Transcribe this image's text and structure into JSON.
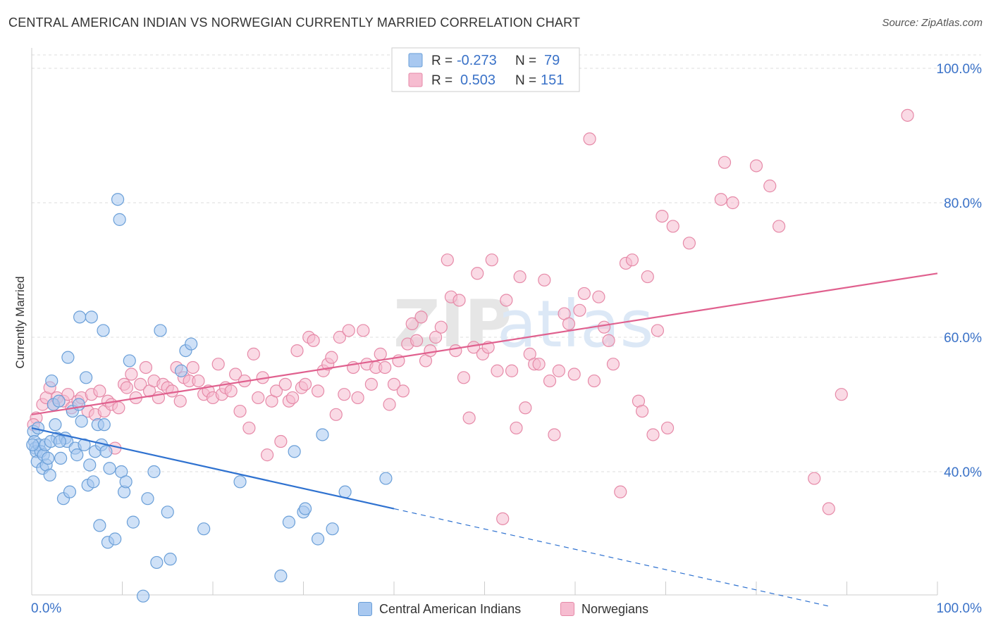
{
  "title": "CENTRAL AMERICAN INDIAN VS NORWEGIAN CURRENTLY MARRIED CORRELATION CHART",
  "source": "Source: ZipAtlas.com",
  "watermark": {
    "zip": "ZIP",
    "atlas": "atlas"
  },
  "legend_box": {
    "rows": [
      {
        "r_label": "R =",
        "r_value": "-0.273",
        "n_label": "N =",
        "n_value": "79"
      },
      {
        "r_label": "R =",
        "r_value": "0.503",
        "n_label": "N =",
        "n_value": "151"
      }
    ]
  },
  "colors": {
    "blue_fill": "#a8c8f0",
    "blue_stroke": "#6a9fd8",
    "blue_line": "#2f72d0",
    "pink_fill": "#f6bcd0",
    "pink_stroke": "#e68aa8",
    "pink_line": "#e0608e",
    "axis_label": "#3a72c8",
    "grid": "#dddddd"
  },
  "chart_data": {
    "type": "scatter",
    "title": "CENTRAL AMERICAN INDIAN VS NORWEGIAN CURRENTLY MARRIED CORRELATION CHART",
    "xlabel": "",
    "ylabel": "Currently Married",
    "xlim": [
      0,
      100
    ],
    "ylim": [
      20,
      102
    ],
    "x_tick_labels": [
      "0.0%",
      "100.0%"
    ],
    "y_ticks": [
      40,
      60,
      80,
      100
    ],
    "y_tick_labels": [
      "40.0%",
      "60.0%",
      "80.0%",
      "100.0%"
    ],
    "grid": true,
    "legend_position": "top-center",
    "series": [
      {
        "name": "Central American Indians",
        "color": "#a8c8f0",
        "r": -0.273,
        "n": 79,
        "trend": {
          "x0": 0,
          "y0": 46.5,
          "x1": 40,
          "y1": 34.5,
          "dashed_to_x": 88,
          "dashed_to_y": 20.0
        },
        "points": [
          [
            0.2,
            46.0
          ],
          [
            0.3,
            44.5
          ],
          [
            0.4,
            43.5
          ],
          [
            0.5,
            43.0
          ],
          [
            0.6,
            41.5
          ],
          [
            0.8,
            44.0
          ],
          [
            1.0,
            43.0
          ],
          [
            1.2,
            40.5
          ],
          [
            1.3,
            42.5
          ],
          [
            1.5,
            44.0
          ],
          [
            1.6,
            41.0
          ],
          [
            2.0,
            39.5
          ],
          [
            2.2,
            53.5
          ],
          [
            2.4,
            50.0
          ],
          [
            2.6,
            47.0
          ],
          [
            2.8,
            45.0
          ],
          [
            3.0,
            50.5
          ],
          [
            3.2,
            42.0
          ],
          [
            3.5,
            36.0
          ],
          [
            3.7,
            45.0
          ],
          [
            3.9,
            44.5
          ],
          [
            4.0,
            57.0
          ],
          [
            4.2,
            37.0
          ],
          [
            4.5,
            49.0
          ],
          [
            4.8,
            43.5
          ],
          [
            5.0,
            42.5
          ],
          [
            5.2,
            50.0
          ],
          [
            5.3,
            63.0
          ],
          [
            5.5,
            47.5
          ],
          [
            5.8,
            44.0
          ],
          [
            6.0,
            54.0
          ],
          [
            6.2,
            38.0
          ],
          [
            6.4,
            41.0
          ],
          [
            6.6,
            63.0
          ],
          [
            6.8,
            38.5
          ],
          [
            7.0,
            43.0
          ],
          [
            7.3,
            47.0
          ],
          [
            7.5,
            32.0
          ],
          [
            7.7,
            44.0
          ],
          [
            7.9,
            61.0
          ],
          [
            8.0,
            47.0
          ],
          [
            8.2,
            43.0
          ],
          [
            8.4,
            29.5
          ],
          [
            8.6,
            40.5
          ],
          [
            9.2,
            30.0
          ],
          [
            9.5,
            80.5
          ],
          [
            9.7,
            77.5
          ],
          [
            9.9,
            40.0
          ],
          [
            10.2,
            37.0
          ],
          [
            10.4,
            38.5
          ],
          [
            10.8,
            56.5
          ],
          [
            11.2,
            32.5
          ],
          [
            12.3,
            21.5
          ],
          [
            12.8,
            36.0
          ],
          [
            13.5,
            40.0
          ],
          [
            13.8,
            26.5
          ],
          [
            14.2,
            61.0
          ],
          [
            15.0,
            34.0
          ],
          [
            15.3,
            27.0
          ],
          [
            16.5,
            55.0
          ],
          [
            17.0,
            58.0
          ],
          [
            17.6,
            59.0
          ],
          [
            19.0,
            31.5
          ],
          [
            23.0,
            38.5
          ],
          [
            27.5,
            24.5
          ],
          [
            28.4,
            32.5
          ],
          [
            29.0,
            43.0
          ],
          [
            30.0,
            34.0
          ],
          [
            30.2,
            34.5
          ],
          [
            31.6,
            30.0
          ],
          [
            32.1,
            45.5
          ],
          [
            33.2,
            31.5
          ],
          [
            34.6,
            37.0
          ],
          [
            39.1,
            39.0
          ],
          [
            0.1,
            44.0
          ],
          [
            0.7,
            46.5
          ],
          [
            1.8,
            42.0
          ],
          [
            2.1,
            44.5
          ],
          [
            3.1,
            44.5
          ]
        ]
      },
      {
        "name": "Norwegians",
        "color": "#f6bcd0",
        "r": 0.503,
        "n": 151,
        "trend": {
          "x0": 0,
          "y0": 48.5,
          "x1": 100,
          "y1": 69.5
        },
        "points": [
          [
            0.5,
            48.0
          ],
          [
            1.2,
            50.0
          ],
          [
            1.6,
            51.0
          ],
          [
            2.0,
            52.5
          ],
          [
            2.4,
            50.0
          ],
          [
            2.8,
            51.0
          ],
          [
            3.5,
            50.5
          ],
          [
            4.0,
            51.5
          ],
          [
            4.4,
            49.5
          ],
          [
            5.1,
            50.5
          ],
          [
            5.5,
            51.0
          ],
          [
            6.2,
            49.0
          ],
          [
            6.6,
            51.5
          ],
          [
            7.0,
            48.5
          ],
          [
            7.5,
            52.0
          ],
          [
            8.0,
            49.0
          ],
          [
            8.4,
            50.5
          ],
          [
            8.8,
            50.0
          ],
          [
            9.2,
            43.5
          ],
          [
            9.6,
            49.5
          ],
          [
            10.2,
            53.0
          ],
          [
            10.5,
            52.5
          ],
          [
            11.0,
            54.5
          ],
          [
            11.5,
            51.0
          ],
          [
            12.0,
            53.0
          ],
          [
            12.6,
            55.5
          ],
          [
            13.0,
            52.0
          ],
          [
            13.5,
            53.5
          ],
          [
            14.0,
            51.0
          ],
          [
            14.5,
            53.0
          ],
          [
            15.0,
            52.5
          ],
          [
            15.5,
            52.0
          ],
          [
            16.0,
            55.5
          ],
          [
            16.4,
            50.5
          ],
          [
            16.8,
            54.0
          ],
          [
            17.4,
            53.5
          ],
          [
            17.8,
            55.5
          ],
          [
            18.4,
            53.5
          ],
          [
            19.0,
            51.5
          ],
          [
            19.5,
            52.0
          ],
          [
            20.0,
            51.0
          ],
          [
            20.6,
            56.0
          ],
          [
            21.0,
            51.5
          ],
          [
            21.4,
            52.5
          ],
          [
            22.0,
            52.0
          ],
          [
            22.5,
            54.5
          ],
          [
            23.0,
            49.0
          ],
          [
            23.5,
            53.5
          ],
          [
            24.0,
            46.5
          ],
          [
            24.5,
            57.5
          ],
          [
            25.0,
            51.0
          ],
          [
            25.5,
            54.0
          ],
          [
            26.0,
            42.5
          ],
          [
            26.5,
            50.5
          ],
          [
            27.0,
            52.0
          ],
          [
            27.5,
            44.5
          ],
          [
            28.0,
            53.0
          ],
          [
            28.4,
            50.5
          ],
          [
            28.8,
            51.0
          ],
          [
            29.3,
            58.0
          ],
          [
            29.8,
            52.5
          ],
          [
            30.2,
            53.0
          ],
          [
            30.6,
            60.0
          ],
          [
            31.1,
            59.5
          ],
          [
            31.6,
            52.0
          ],
          [
            32.2,
            55.0
          ],
          [
            32.7,
            56.0
          ],
          [
            33.1,
            57.0
          ],
          [
            33.6,
            48.5
          ],
          [
            34.0,
            60.0
          ],
          [
            34.5,
            51.5
          ],
          [
            35.0,
            61.0
          ],
          [
            35.5,
            55.5
          ],
          [
            36.0,
            51.0
          ],
          [
            36.6,
            61.0
          ],
          [
            37.0,
            56.0
          ],
          [
            37.5,
            53.0
          ],
          [
            38.0,
            55.5
          ],
          [
            38.5,
            57.5
          ],
          [
            39.0,
            55.5
          ],
          [
            39.5,
            50.0
          ],
          [
            40.0,
            53.0
          ],
          [
            40.5,
            56.5
          ],
          [
            41.0,
            52.0
          ],
          [
            41.5,
            59.0
          ],
          [
            42.0,
            62.0
          ],
          [
            42.5,
            59.5
          ],
          [
            43.0,
            63.0
          ],
          [
            43.5,
            56.5
          ],
          [
            44.0,
            58.0
          ],
          [
            44.6,
            60.0
          ],
          [
            45.2,
            61.5
          ],
          [
            45.9,
            71.5
          ],
          [
            46.3,
            66.0
          ],
          [
            46.8,
            58.0
          ],
          [
            47.2,
            65.5
          ],
          [
            47.7,
            54.0
          ],
          [
            48.3,
            48.0
          ],
          [
            48.8,
            58.5
          ],
          [
            49.2,
            69.5
          ],
          [
            49.8,
            57.5
          ],
          [
            50.4,
            58.5
          ],
          [
            50.8,
            71.5
          ],
          [
            51.4,
            55.0
          ],
          [
            52.0,
            33.0
          ],
          [
            52.4,
            65.5
          ],
          [
            53.0,
            55.0
          ],
          [
            53.5,
            46.5
          ],
          [
            53.9,
            69.0
          ],
          [
            54.5,
            49.5
          ],
          [
            55.0,
            57.5
          ],
          [
            55.5,
            56.0
          ],
          [
            56.0,
            56.0
          ],
          [
            56.6,
            68.5
          ],
          [
            57.2,
            53.5
          ],
          [
            57.7,
            45.5
          ],
          [
            58.2,
            55.0
          ],
          [
            58.8,
            63.5
          ],
          [
            59.3,
            62.0
          ],
          [
            59.9,
            54.5
          ],
          [
            60.5,
            64.0
          ],
          [
            61.0,
            66.5
          ],
          [
            61.6,
            89.5
          ],
          [
            62.1,
            53.5
          ],
          [
            62.6,
            66.0
          ],
          [
            63.2,
            61.5
          ],
          [
            63.7,
            59.5
          ],
          [
            64.2,
            56.0
          ],
          [
            65.0,
            37.0
          ],
          [
            65.6,
            71.0
          ],
          [
            66.3,
            71.5
          ],
          [
            67.0,
            50.5
          ],
          [
            67.4,
            49.0
          ],
          [
            68.0,
            69.0
          ],
          [
            68.6,
            45.5
          ],
          [
            69.1,
            61.0
          ],
          [
            69.6,
            78.0
          ],
          [
            70.2,
            46.5
          ],
          [
            70.8,
            76.5
          ],
          [
            72.6,
            74.0
          ],
          [
            76.1,
            80.5
          ],
          [
            76.5,
            86.0
          ],
          [
            77.4,
            80.0
          ],
          [
            80.0,
            85.5
          ],
          [
            81.5,
            82.5
          ],
          [
            82.5,
            76.5
          ],
          [
            86.4,
            39.0
          ],
          [
            88.0,
            34.5
          ],
          [
            89.4,
            51.5
          ],
          [
            96.7,
            93.0
          ],
          [
            0.2,
            47.0
          ]
        ]
      }
    ]
  },
  "legend_bottom": {
    "items": [
      {
        "label": "Central American Indians"
      },
      {
        "label": "Norwegians"
      }
    ]
  }
}
